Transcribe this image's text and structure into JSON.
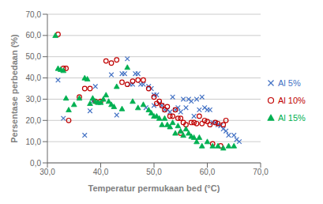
{
  "chart_data": {
    "type": "scatter",
    "title": "",
    "xlabel": "Temperatur permukaan bed (°C)",
    "ylabel": "Persentase perbedaan (%)",
    "xlim": [
      30.0,
      70.0
    ],
    "ylim": [
      0.0,
      70.0
    ],
    "xticks": [
      {
        "value": 30.0,
        "label": "30,0"
      },
      {
        "value": 40.0,
        "label": "40,0"
      },
      {
        "value": 50.0,
        "label": "50,0"
      },
      {
        "value": 60.0,
        "label": "60,0"
      },
      {
        "value": 70.0,
        "label": "70,0"
      }
    ],
    "yticks": [
      {
        "value": 0.0,
        "label": "0,0"
      },
      {
        "value": 10.0,
        "label": "10,0"
      },
      {
        "value": 20.0,
        "label": "20,0"
      },
      {
        "value": 30.0,
        "label": "30,0"
      },
      {
        "value": 40.0,
        "label": "40,0"
      },
      {
        "value": 50.0,
        "label": "50,0"
      },
      {
        "value": 60.0,
        "label": "60,0"
      },
      {
        "value": 70.0,
        "label": "70,0"
      }
    ],
    "grid": "y",
    "legend": "right",
    "series": [
      {
        "name": "Al 5%",
        "color": "#4472C4",
        "marker": "x",
        "x": [
          32.0,
          33.0,
          37.0,
          38.0,
          38.5,
          39.0,
          42.0,
          43.0,
          44.0,
          44.5,
          45.0,
          45.5,
          46.0,
          46.5,
          47.0,
          47.5,
          48.0,
          48.5,
          49.0,
          49.5,
          50.0,
          50.0,
          50.5,
          51.0,
          51.5,
          52.0,
          52.5,
          53.0,
          53.5,
          54.0,
          54.5,
          55.0,
          55.5,
          56.0,
          56.5,
          57.0,
          57.5,
          58.0,
          58.5,
          59.0,
          59.5,
          60.0,
          60.5,
          61.0,
          61.5,
          62.0,
          62.5,
          63.0,
          63.5,
          64.0,
          65.0,
          65.5,
          66.0
        ],
        "values": [
          39.0,
          21.0,
          13.0,
          24.5,
          29.0,
          36.0,
          41.5,
          22.5,
          42.0,
          42.0,
          49.0,
          37.0,
          37.0,
          42.0,
          42.0,
          37.0,
          37.0,
          26.0,
          36.0,
          35.0,
          32.0,
          27.0,
          32.0,
          28.0,
          27.0,
          25.0,
          25.0,
          24.0,
          31.0,
          25.0,
          26.0,
          24.0,
          30.0,
          26.0,
          30.0,
          29.0,
          22.0,
          30.0,
          25.0,
          31.0,
          26.0,
          25.0,
          25.0,
          19.0,
          19.0,
          18.0,
          17.5,
          16.0,
          15.0,
          13.0,
          13.0,
          11.0,
          10.0
        ]
      },
      {
        "name": "Al 10%",
        "color": "#C00000",
        "marker": "open_circle",
        "x": [
          32.0,
          33.0,
          33.5,
          34.0,
          36.0,
          37.0,
          38.0,
          39.0,
          40.0,
          41.0,
          42.0,
          43.0,
          44.0,
          45.0,
          46.0,
          47.0,
          48.0,
          49.0,
          50.0,
          50.5,
          51.0,
          51.5,
          52.0,
          52.5,
          53.0,
          53.5,
          54.0,
          54.5,
          55.0,
          55.0,
          55.5,
          56.0,
          57.0,
          57.5,
          58.0,
          58.5,
          59.0,
          59.5,
          60.0,
          60.5,
          61.0,
          61.5,
          62.0,
          62.5,
          63.0,
          63.5
        ],
        "values": [
          60.5,
          44.5,
          44.5,
          20.0,
          31.0,
          35.0,
          35.0,
          29.0,
          29.0,
          48.0,
          47.0,
          48.5,
          38.0,
          37.0,
          38.5,
          39.0,
          39.0,
          35.0,
          31.0,
          28.0,
          29.0,
          27.0,
          25.0,
          26.5,
          22.0,
          22.0,
          25.0,
          21.0,
          21.0,
          14.0,
          19.0,
          18.0,
          19.0,
          19.0,
          18.5,
          22.0,
          18.5,
          20.0,
          19.5,
          18.0,
          9.0,
          19.0,
          18.5,
          8.0,
          18.0,
          20.0
        ]
      },
      {
        "name": "Al 15%",
        "color": "#00B050",
        "marker": "triangle",
        "x": [
          31.5,
          32.0,
          32.5,
          33.0,
          33.5,
          34.0,
          35.0,
          36.0,
          37.0,
          37.5,
          38.0,
          38.5,
          39.0,
          39.5,
          40.0,
          40.5,
          41.0,
          41.5,
          42.0,
          42.5,
          43.0,
          44.0,
          45.0,
          46.0,
          47.0,
          48.0,
          49.0,
          49.5,
          50.0,
          50.5,
          51.0,
          51.5,
          52.0,
          52.5,
          53.0,
          53.5,
          54.0,
          54.5,
          55.0,
          55.5,
          56.0,
          56.5,
          57.0,
          57.5,
          58.0,
          58.5,
          59.0,
          60.0,
          61.0,
          62.0,
          63.0,
          64.0,
          65.0
        ],
        "values": [
          60.0,
          44.5,
          44.0,
          43.5,
          30.5,
          25.0,
          27.5,
          30.5,
          40.0,
          39.5,
          28.0,
          30.5,
          29.0,
          28.5,
          28.5,
          30.0,
          32.0,
          29.0,
          27.5,
          26.5,
          36.0,
          25.5,
          45.0,
          29.0,
          26.0,
          27.5,
          25.0,
          23.5,
          22.0,
          22.0,
          21.0,
          18.0,
          21.0,
          18.0,
          17.0,
          19.0,
          14.0,
          17.5,
          15.0,
          13.0,
          16.0,
          14.0,
          12.5,
          12.0,
          10.0,
          12.0,
          8.0,
          10.0,
          8.0,
          8.0,
          7.0,
          8.0,
          8.0
        ]
      }
    ]
  }
}
